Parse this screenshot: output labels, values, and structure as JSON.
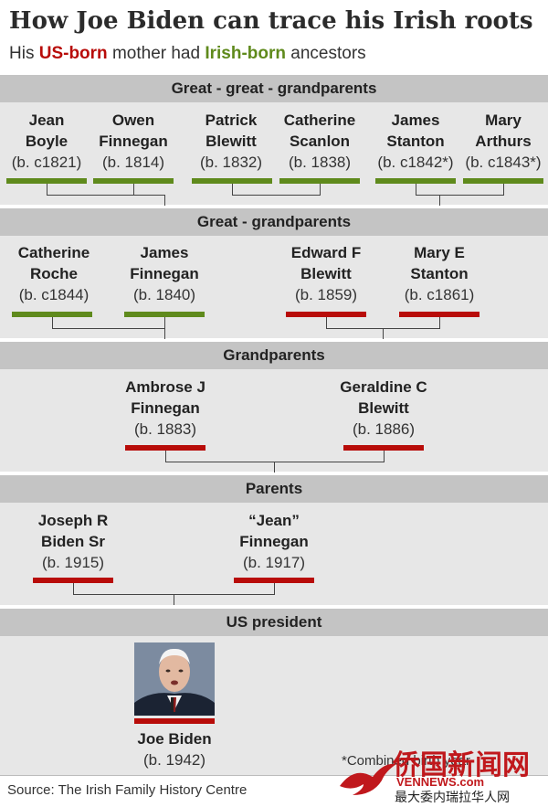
{
  "title": "How Joe Biden can trace his Irish roots",
  "subtitle": {
    "prefix": "His ",
    "us_born": "US-born",
    "middle": " mother had ",
    "irish_born": "Irish-born",
    "suffix": " ancestors"
  },
  "colors": {
    "irish": "#5f8a1c",
    "us": "#b80c09",
    "band": "#e7e7e7",
    "band_header": "#c4c4c4"
  },
  "generations": {
    "great_great": {
      "heading": "Great - great - grandparents",
      "people": [
        {
          "first": "Jean",
          "last": "Boyle",
          "born": "(b. c1821)",
          "origin": "irish"
        },
        {
          "first": "Owen",
          "last": "Finnegan",
          "born": "(b. 1814)",
          "origin": "irish"
        },
        {
          "first": "Patrick",
          "last": "Blewitt",
          "born": "(b. 1832)",
          "origin": "irish"
        },
        {
          "first": "Catherine",
          "last": "Scanlon",
          "born": "(b. 1838)",
          "origin": "irish"
        },
        {
          "first": "James",
          "last": "Stanton",
          "born": "(b. c1842*)",
          "origin": "irish"
        },
        {
          "first": "Mary",
          "last": "Arthurs",
          "born": "(b. c1843*)",
          "origin": "irish"
        }
      ]
    },
    "great": {
      "heading": "Great - grandparents",
      "people": [
        {
          "first": "Catherine",
          "last": "Roche",
          "born": "(b. c1844)",
          "origin": "irish"
        },
        {
          "first": "James",
          "last": "Finnegan",
          "born": "(b. 1840)",
          "origin": "irish"
        },
        {
          "first": "Edward F",
          "last": "Blewitt",
          "born": "(b. 1859)",
          "origin": "us"
        },
        {
          "first": "Mary E",
          "last": "Stanton",
          "born": "(b. c1861)",
          "origin": "us"
        }
      ]
    },
    "grand": {
      "heading": "Grandparents",
      "people": [
        {
          "first": "Ambrose J",
          "last": "Finnegan",
          "born": "(b. 1883)",
          "origin": "us"
        },
        {
          "first": "Geraldine C",
          "last": "Blewitt",
          "born": "(b. 1886)",
          "origin": "us"
        }
      ]
    },
    "parents": {
      "heading": "Parents",
      "people": [
        {
          "first": "Joseph R",
          "last": "Biden Sr",
          "born": "(b. 1915)",
          "origin": "us"
        },
        {
          "first": "“Jean”",
          "last": "Finnegan",
          "born": "(b. 1917)",
          "origin": "us"
        }
      ]
    },
    "president": {
      "heading": "US president",
      "person": {
        "name": "Joe Biden",
        "born": "(b. 1942)",
        "origin": "us",
        "photo": "portrait-photo"
      }
    }
  },
  "footnote": "*Combined birth year",
  "source": "Source: The Irish Family History Centre",
  "watermark": {
    "main": "侨国新闻网",
    "latin": "VENNEWS.com",
    "sub": "最大委内瑞拉华人网"
  }
}
